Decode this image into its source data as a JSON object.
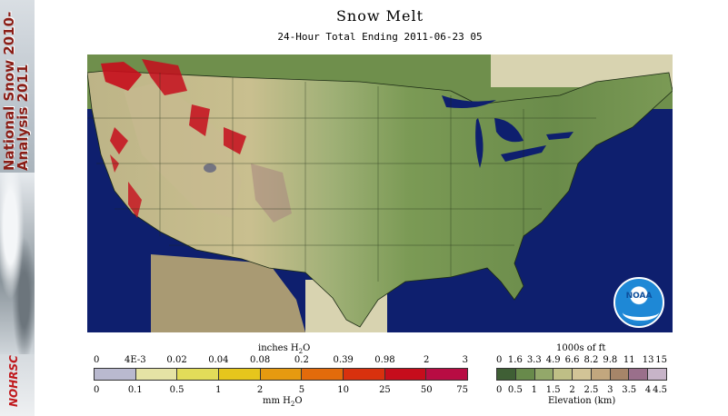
{
  "header": {
    "title": "Snow Melt",
    "subtitle": "24-Hour Total Ending 2011-06-23 05"
  },
  "banner": {
    "line1": "National Snow 2010-",
    "line2": "Analysis 2011",
    "logo": "NOHRSC"
  },
  "melt_legend": {
    "top_unit": "inches H2O",
    "bottom_unit": "mm H2O",
    "inch_ticks": [
      "0",
      "4E-3",
      "0.02",
      "0.04",
      "0.08",
      "0.2",
      "0.39",
      "0.98",
      "2",
      "3"
    ],
    "mm_ticks": [
      "0",
      "0.1",
      "0.5",
      "1",
      "2",
      "5",
      "10",
      "25",
      "50",
      "75"
    ],
    "colors": [
      "#b9b9cf",
      "#e5e3a5",
      "#e2dc59",
      "#e6c61c",
      "#e69a10",
      "#e36b0b",
      "#d8310e",
      "#c60d1c",
      "#b80c43"
    ]
  },
  "elevation_legend": {
    "top_unit": "1000s of ft",
    "bottom_unit": "Elevation (km)",
    "ft_ticks": [
      "0",
      "1.6",
      "3.3",
      "4.9",
      "6.6",
      "8.2",
      "9.8",
      "11",
      "13",
      "15"
    ],
    "km_ticks": [
      "0",
      "0.5",
      "1",
      "1.5",
      "2",
      "2.5",
      "3",
      "3.5",
      "4",
      "4.5"
    ],
    "colors": [
      "#3f5f35",
      "#688a4b",
      "#93a86a",
      "#bfbf86",
      "#d2c497",
      "#c2a77e",
      "#a68569",
      "#9a6f8b",
      "#c7b4c8"
    ]
  },
  "noaa_logo": "NOAA"
}
